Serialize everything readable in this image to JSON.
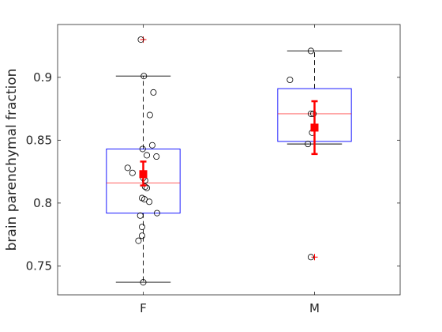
{
  "chart_data": {
    "type": "box",
    "title": "",
    "xlabel": "",
    "ylabel": "brain parenchymal fraction",
    "ylim": [
      0.727,
      0.942
    ],
    "yticks": [
      0.75,
      0.8,
      0.85,
      0.9
    ],
    "ytick_labels": [
      "0.75",
      "0.8",
      "0.85",
      "0.9"
    ],
    "categories": [
      "F",
      "M"
    ],
    "grid": false,
    "colors": {
      "box": "#0000ff",
      "median": "#ff0000",
      "whisker": "#000000",
      "outlier": "#ff0000",
      "points": "#000000",
      "mean": "#ff0000",
      "axes": "#262626"
    },
    "groups": [
      {
        "name": "F",
        "q1": 0.792,
        "median": 0.816,
        "q3": 0.843,
        "whisker_low": 0.737,
        "whisker_high": 0.901,
        "outliers": [
          0.93
        ],
        "mean": 0.823,
        "mean_ci": [
          0.814,
          0.833
        ],
        "points": [
          {
            "jitter": -0.04,
            "value": 0.93
          },
          {
            "jitter": 0.01,
            "value": 0.901
          },
          {
            "jitter": 0.17,
            "value": 0.888
          },
          {
            "jitter": 0.11,
            "value": 0.87
          },
          {
            "jitter": 0.15,
            "value": 0.846
          },
          {
            "jitter": -0.01,
            "value": 0.843
          },
          {
            "jitter": 0.22,
            "value": 0.837
          },
          {
            "jitter": 0.06,
            "value": 0.838
          },
          {
            "jitter": -0.26,
            "value": 0.828
          },
          {
            "jitter": -0.18,
            "value": 0.824
          },
          {
            "jitter": 0.0,
            "value": 0.82
          },
          {
            "jitter": 0.03,
            "value": 0.818
          },
          {
            "jitter": 0.03,
            "value": 0.813
          },
          {
            "jitter": 0.06,
            "value": 0.812
          },
          {
            "jitter": -0.02,
            "value": 0.804
          },
          {
            "jitter": 0.02,
            "value": 0.803
          },
          {
            "jitter": 0.1,
            "value": 0.801
          },
          {
            "jitter": 0.23,
            "value": 0.792
          },
          {
            "jitter": -0.05,
            "value": 0.79
          },
          {
            "jitter": -0.02,
            "value": 0.781
          },
          {
            "jitter": -0.02,
            "value": 0.774
          },
          {
            "jitter": -0.08,
            "value": 0.77
          },
          {
            "jitter": 0.0,
            "value": 0.737
          }
        ]
      },
      {
        "name": "M",
        "q1": 0.849,
        "median": 0.871,
        "q3": 0.891,
        "whisker_low": 0.847,
        "whisker_high": 0.921,
        "outliers": [
          0.757
        ],
        "mean": 0.86,
        "mean_ci": [
          0.839,
          0.881
        ],
        "points": [
          {
            "jitter": -0.06,
            "value": 0.921
          },
          {
            "jitter": -0.41,
            "value": 0.898
          },
          {
            "jitter": -0.02,
            "value": 0.871
          },
          {
            "jitter": -0.06,
            "value": 0.871
          },
          {
            "jitter": -0.04,
            "value": 0.856
          },
          {
            "jitter": -0.11,
            "value": 0.847
          },
          {
            "jitter": -0.06,
            "value": 0.757
          }
        ]
      }
    ]
  }
}
